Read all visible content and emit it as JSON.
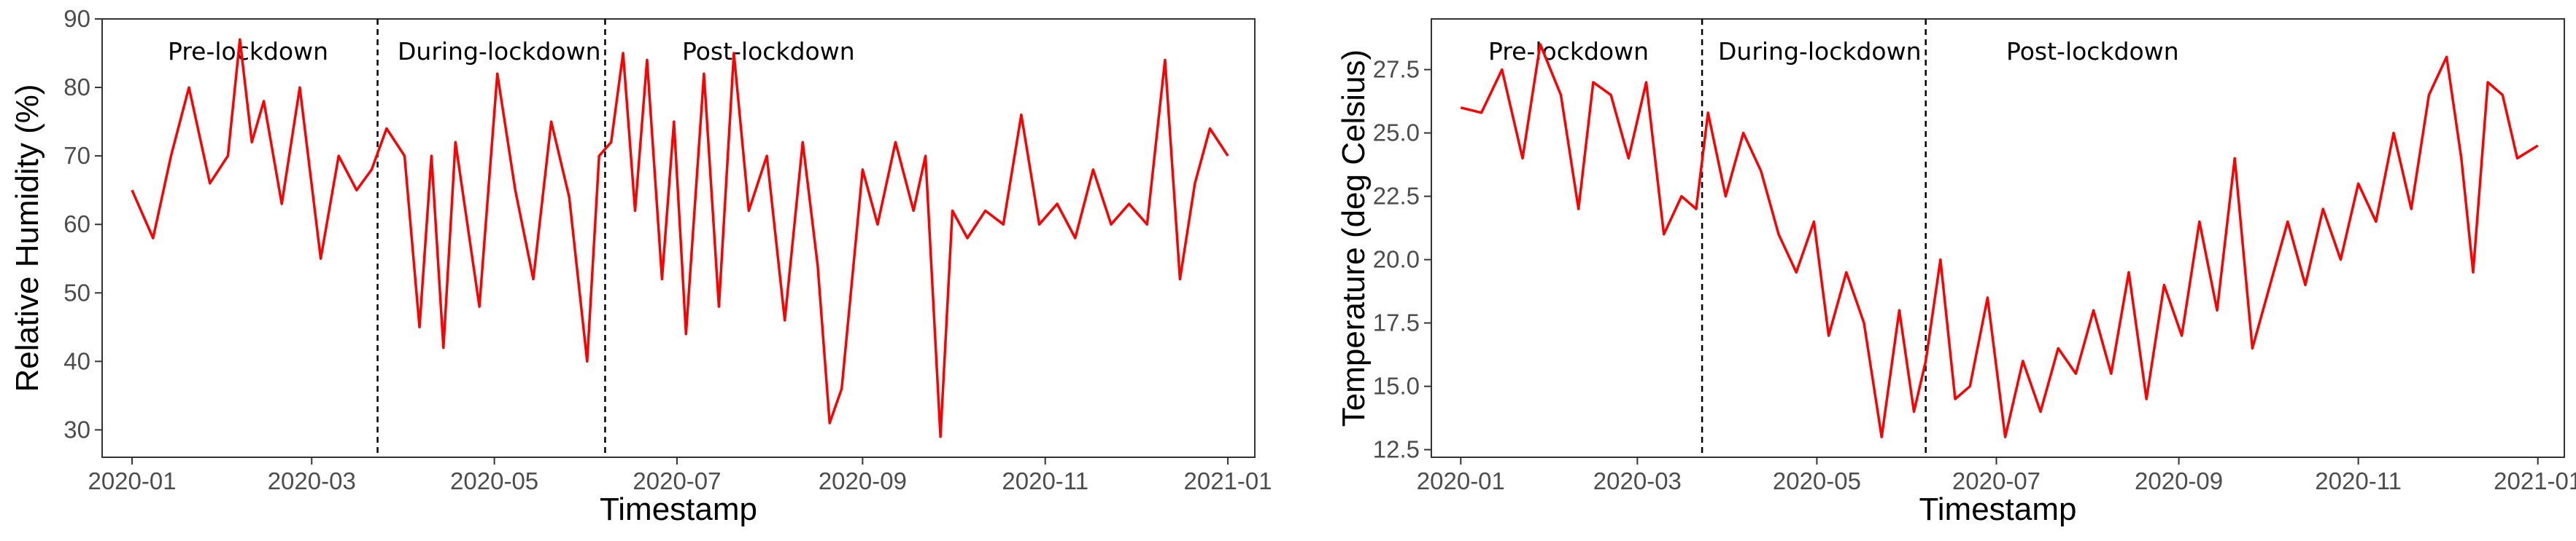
{
  "chart_data": [
    {
      "type": "line",
      "xlabel": "Timestamp",
      "ylabel": "Relative Humidity (%)",
      "x_ticks": [
        "2020-01",
        "2020-03",
        "2020-05",
        "2020-07",
        "2020-09",
        "2020-11",
        "2021-01"
      ],
      "y_ticks": [
        "30",
        "40",
        "50",
        "60",
        "70",
        "80",
        "90"
      ],
      "xlim": [
        "2019-12-22",
        "2021-01-10"
      ],
      "ylim": [
        26,
        90
      ],
      "grid": false,
      "line_color": "#ff0000",
      "phase_labels": [
        "Pre-lockdown",
        "During-lockdown",
        "Post-lockdown"
      ],
      "phase_boundaries": [
        "2020-03-23",
        "2020-06-07"
      ],
      "series": [
        {
          "x": [
            "2020-01-01",
            "2020-01-08",
            "2020-01-14",
            "2020-01-20",
            "2020-01-27",
            "2020-02-02",
            "2020-02-06",
            "2020-02-10",
            "2020-02-14",
            "2020-02-20",
            "2020-02-26",
            "2020-03-04",
            "2020-03-10",
            "2020-03-16",
            "2020-03-21",
            "2020-03-26",
            "2020-04-01",
            "2020-04-06",
            "2020-04-10",
            "2020-04-14",
            "2020-04-18",
            "2020-04-22",
            "2020-04-26",
            "2020-05-02",
            "2020-05-08",
            "2020-05-14",
            "2020-05-20",
            "2020-05-26",
            "2020-06-01",
            "2020-06-05",
            "2020-06-09",
            "2020-06-13",
            "2020-06-17",
            "2020-06-21",
            "2020-06-26",
            "2020-06-30",
            "2020-07-04",
            "2020-07-10",
            "2020-07-15",
            "2020-07-20",
            "2020-07-25",
            "2020-07-31",
            "2020-08-06",
            "2020-08-12",
            "2020-08-17",
            "2020-08-21",
            "2020-08-25",
            "2020-09-01",
            "2020-09-06",
            "2020-09-12",
            "2020-09-18",
            "2020-09-22",
            "2020-09-27",
            "2020-10-01",
            "2020-10-06",
            "2020-10-12",
            "2020-10-18",
            "2020-10-24",
            "2020-10-30",
            "2020-11-05",
            "2020-11-11",
            "2020-11-17",
            "2020-11-23",
            "2020-11-29",
            "2020-12-05",
            "2020-12-11",
            "2020-12-16",
            "2020-12-21",
            "2020-12-26",
            "2021-01-01"
          ],
          "values": [
            65,
            58,
            70,
            80,
            66,
            70,
            87,
            72,
            78,
            63,
            80,
            55,
            70,
            65,
            68,
            74,
            70,
            45,
            70,
            42,
            72,
            60,
            48,
            82,
            65,
            52,
            75,
            64,
            40,
            70,
            72,
            85,
            62,
            84,
            52,
            75,
            44,
            82,
            48,
            85,
            62,
            70,
            46,
            72,
            54,
            31,
            36,
            68,
            60,
            72,
            62,
            70,
            29,
            62,
            58,
            62,
            60,
            76,
            60,
            63,
            58,
            68,
            60,
            63,
            60,
            84,
            52,
            66,
            74,
            70
          ]
        }
      ]
    },
    {
      "type": "line",
      "xlabel": "Timestamp",
      "ylabel": "Temperature (deg Celsius)",
      "x_ticks": [
        "2020-01",
        "2020-03",
        "2020-05",
        "2020-07",
        "2020-09",
        "2020-11",
        "2021-01"
      ],
      "y_ticks": [
        "12.5",
        "15.0",
        "17.5",
        "20.0",
        "22.5",
        "25.0",
        "27.5"
      ],
      "xlim": [
        "2019-12-22",
        "2021-01-10"
      ],
      "ylim": [
        12.2,
        29.5
      ],
      "grid": false,
      "line_color": "#ff0000",
      "phase_labels": [
        "Pre-lockdown",
        "During-lockdown",
        "Post-lockdown"
      ],
      "phase_boundaries": [
        "2020-03-23",
        "2020-06-07"
      ],
      "series": [
        {
          "x": [
            "2020-01-01",
            "2020-01-08",
            "2020-01-15",
            "2020-01-22",
            "2020-01-28",
            "2020-02-04",
            "2020-02-10",
            "2020-02-15",
            "2020-02-21",
            "2020-02-27",
            "2020-03-04",
            "2020-03-10",
            "2020-03-16",
            "2020-03-21",
            "2020-03-25",
            "2020-03-31",
            "2020-04-06",
            "2020-04-12",
            "2020-04-18",
            "2020-04-24",
            "2020-04-30",
            "2020-05-05",
            "2020-05-11",
            "2020-05-17",
            "2020-05-23",
            "2020-05-29",
            "2020-06-03",
            "2020-06-07",
            "2020-06-12",
            "2020-06-17",
            "2020-06-22",
            "2020-06-28",
            "2020-07-04",
            "2020-07-10",
            "2020-07-16",
            "2020-07-22",
            "2020-07-28",
            "2020-08-03",
            "2020-08-09",
            "2020-08-15",
            "2020-08-21",
            "2020-08-27",
            "2020-09-02",
            "2020-09-08",
            "2020-09-14",
            "2020-09-20",
            "2020-09-26",
            "2020-10-02",
            "2020-10-08",
            "2020-10-14",
            "2020-10-20",
            "2020-10-26",
            "2020-11-01",
            "2020-11-07",
            "2020-11-13",
            "2020-11-19",
            "2020-11-25",
            "2020-12-01",
            "2020-12-06",
            "2020-12-10",
            "2020-12-15",
            "2020-12-20",
            "2020-12-25",
            "2021-01-01"
          ],
          "values": [
            26,
            25.8,
            27.5,
            24,
            28.5,
            26.5,
            22,
            27,
            26.5,
            24,
            27,
            21,
            22.5,
            22,
            25.8,
            22.5,
            25,
            23.5,
            21,
            19.5,
            21.5,
            17,
            19.5,
            17.5,
            13,
            18,
            14,
            16,
            20,
            14.5,
            15,
            18.5,
            13,
            16,
            14,
            16.5,
            15.5,
            18,
            15.5,
            19.5,
            14.5,
            19,
            17,
            21.5,
            18,
            24,
            16.5,
            19,
            21.5,
            19,
            22,
            20,
            23,
            21.5,
            25,
            22,
            26.5,
            28,
            24,
            19.5,
            27,
            26.5,
            24,
            24.5
          ]
        }
      ]
    }
  ]
}
